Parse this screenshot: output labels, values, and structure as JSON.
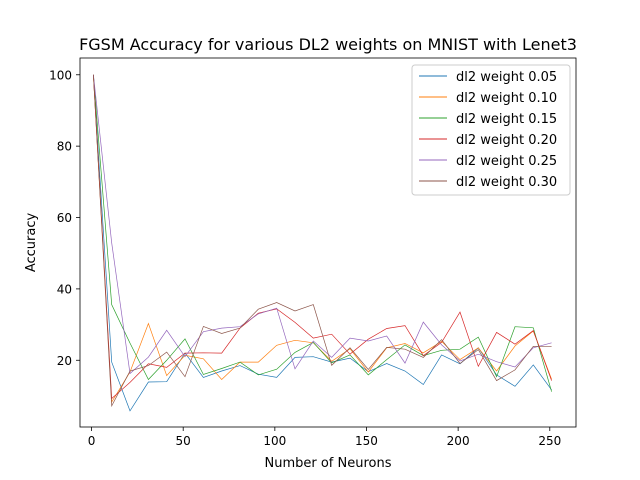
{
  "chart_data": {
    "type": "line",
    "title": "FGSM Accuracy for various DL2 weights on MNIST with Lenet3",
    "xlabel": "Number of Neurons",
    "ylabel": "Accuracy",
    "xlim": [
      -6.3,
      264.3
    ],
    "ylim": [
      1.3,
      104.7
    ],
    "xticks": [
      0,
      50,
      100,
      150,
      200,
      250
    ],
    "yticks": [
      20,
      40,
      60,
      80,
      100
    ],
    "grid": false,
    "legend_position": "upper right",
    "x": [
      1,
      11,
      21,
      31,
      41,
      51,
      61,
      71,
      81,
      91,
      101,
      111,
      121,
      131,
      141,
      151,
      161,
      171,
      181,
      191,
      201,
      211,
      221,
      231,
      241,
      251
    ],
    "series": [
      {
        "name": "dl2 weight 0.05",
        "color": "#1f77b4",
        "values": [
          100,
          19.5,
          5.8,
          13.9,
          14.0,
          22.0,
          15.2,
          17.0,
          18.5,
          16.1,
          15.2,
          20.8,
          21.0,
          19.5,
          20.6,
          16.8,
          19.1,
          17.0,
          13.2,
          21.5,
          19.0,
          23.5,
          15.9,
          12.7,
          18.7,
          11.7
        ]
      },
      {
        "name": "dl2 weight 0.10",
        "color": "#ff7f0e",
        "values": [
          100,
          8.3,
          16.7,
          30.3,
          15.7,
          21.4,
          20.4,
          14.6,
          19.5,
          19.5,
          24.2,
          25.6,
          24.9,
          19.7,
          23.2,
          16.7,
          23.5,
          24.7,
          22.1,
          25.3,
          20.2,
          23.5,
          17.0,
          24.0,
          28.2,
          14.7
        ]
      },
      {
        "name": "dl2 weight 0.15",
        "color": "#2ca02c",
        "values": [
          100,
          35.6,
          24.8,
          14.6,
          20.0,
          26.0,
          16.0,
          17.7,
          19.5,
          15.9,
          17.5,
          22.2,
          25.0,
          19.3,
          21.5,
          15.9,
          20.2,
          24.3,
          21.3,
          22.8,
          23.1,
          26.5,
          15.4,
          29.4,
          29.1,
          11.2
        ]
      },
      {
        "name": "dl2 weight 0.20",
        "color": "#d62728",
        "values": [
          100,
          9.3,
          13.8,
          19.0,
          18.0,
          22.0,
          22.1,
          22.0,
          29.0,
          33.2,
          34.4,
          30.6,
          26.2,
          27.3,
          21.7,
          25.9,
          28.9,
          29.7,
          21.3,
          25.0,
          33.5,
          18.3,
          27.8,
          24.5,
          28.3,
          14.3
        ]
      },
      {
        "name": "dl2 weight 0.25",
        "color": "#9467bd",
        "values": [
          100,
          52.9,
          16.3,
          20.9,
          28.4,
          21.0,
          28.0,
          29.0,
          29.4,
          33.0,
          34.6,
          17.6,
          25.4,
          20.8,
          26.2,
          25.4,
          26.8,
          19.2,
          30.7,
          24.3,
          19.8,
          21.7,
          19.6,
          18.1,
          23.5,
          24.9
        ]
      },
      {
        "name": "dl2 weight 0.30",
        "color": "#8c564b",
        "values": [
          100,
          7.2,
          17.0,
          18.5,
          22.3,
          15.4,
          29.5,
          27.5,
          29.0,
          34.3,
          36.2,
          33.8,
          35.6,
          18.6,
          23.5,
          17.4,
          23.6,
          23.1,
          20.8,
          25.8,
          19.1,
          23.0,
          14.3,
          17.3,
          23.9,
          23.8
        ]
      }
    ]
  }
}
